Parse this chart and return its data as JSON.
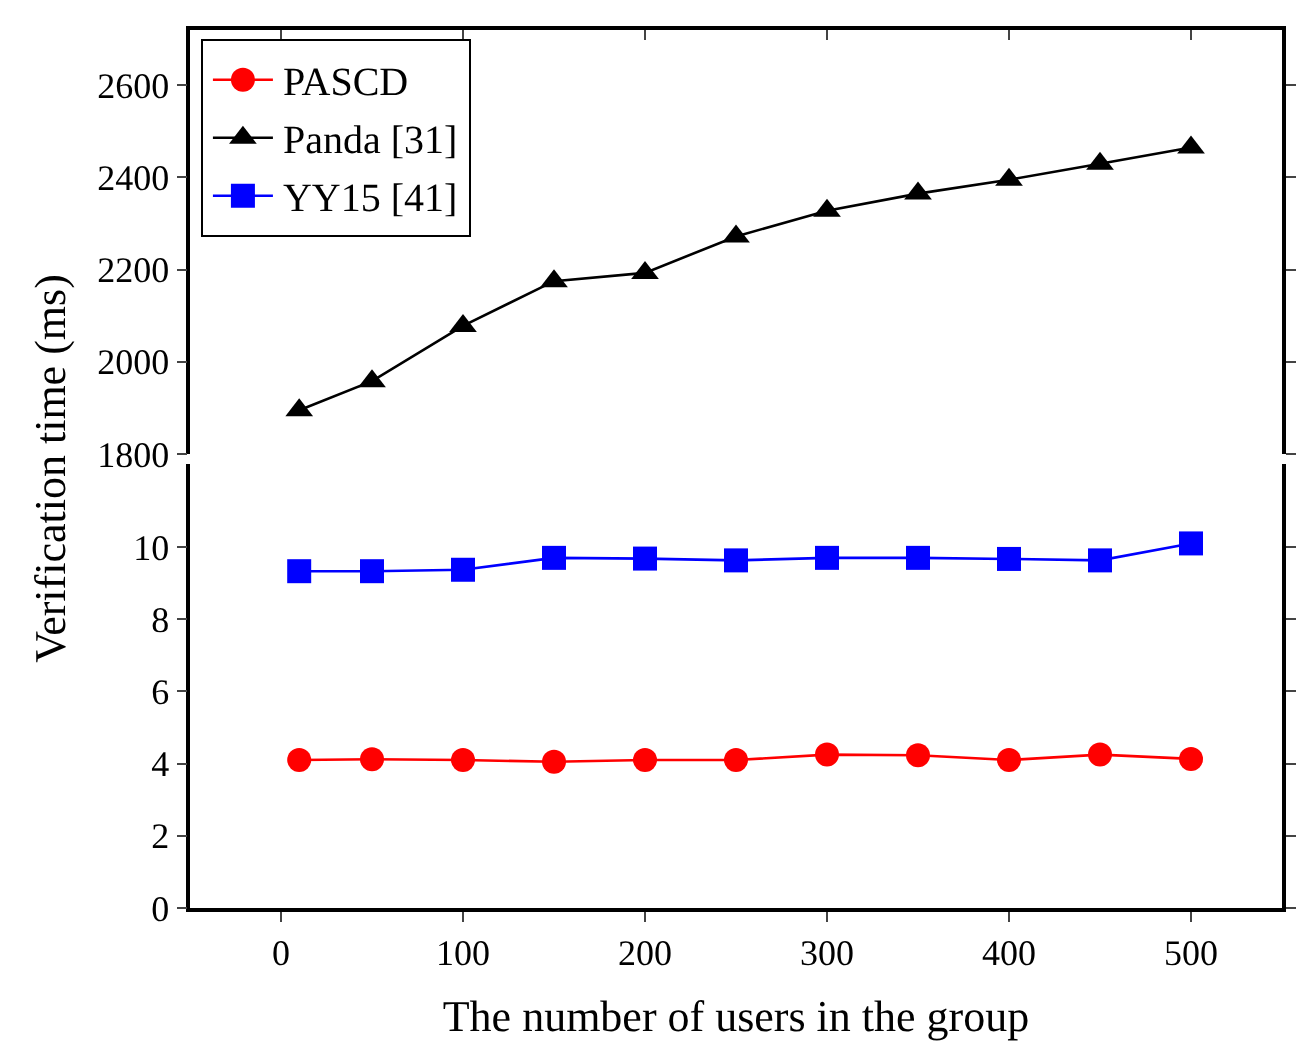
{
  "chart_data": [
    {
      "type": "line",
      "x": [
        10,
        50,
        100,
        150,
        200,
        250,
        300,
        350,
        400,
        450,
        500
      ],
      "xlim": [
        -50,
        550
      ],
      "ylim": [
        1800,
        2720
      ],
      "yticks": [
        1800,
        2000,
        2200,
        2400,
        2600
      ],
      "tick_labels": "y",
      "legend": "top left",
      "line_style": "solid",
      "series": [
        {
          "name": "Panda [31]",
          "color": "#000000",
          "marker": "triangle",
          "values": [
            1895,
            1958,
            2078,
            2175,
            2193,
            2272,
            2328,
            2365,
            2395,
            2430,
            2465
          ]
        }
      ]
    },
    {
      "type": "line",
      "x": [
        10,
        50,
        100,
        150,
        200,
        250,
        300,
        350,
        400,
        450,
        500
      ],
      "xlim": [
        -50,
        550
      ],
      "xticks": [
        0,
        100,
        200,
        300,
        400,
        500
      ],
      "ylim": [
        0,
        12.3
      ],
      "yticks": [
        0,
        2,
        4,
        6,
        8,
        10
      ],
      "xlabel": "The number of users in the group",
      "ylabel": "Verification time (ms)",
      "legend": "top left",
      "line_style": "solid",
      "series": [
        {
          "name": "PASCD",
          "color": "#ff0000",
          "marker": "circle",
          "values": [
            4.1,
            4.12,
            4.1,
            4.05,
            4.1,
            4.1,
            4.25,
            4.23,
            4.1,
            4.25,
            4.13
          ]
        },
        {
          "name": "YY15 [41]",
          "color": "#0000ff",
          "marker": "square",
          "values": [
            9.33,
            9.33,
            9.37,
            9.7,
            9.68,
            9.63,
            9.7,
            9.7,
            9.67,
            9.63,
            10.1
          ]
        }
      ]
    }
  ]
}
